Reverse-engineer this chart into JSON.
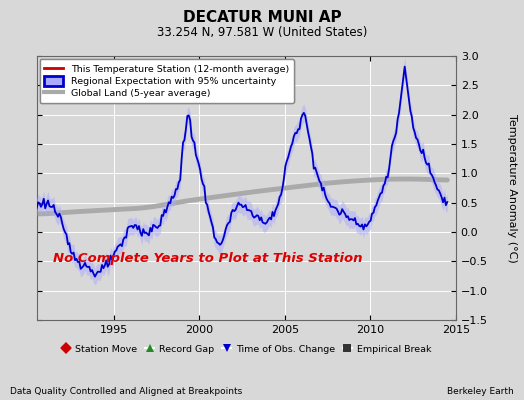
{
  "title": "DECATUR MUNI AP",
  "subtitle": "33.254 N, 97.581 W (United States)",
  "ylabel": "Temperature Anomaly (°C)",
  "xlabel_left": "Data Quality Controlled and Aligned at Breakpoints",
  "xlabel_right": "Berkeley Earth",
  "annotation": "No Complete Years to Plot at This Station",
  "annotation_color": "#dd0000",
  "xlim": [
    1990.5,
    2015.0
  ],
  "ylim": [
    -1.5,
    3.0
  ],
  "yticks": [
    -1.5,
    -1.0,
    -0.5,
    0.0,
    0.5,
    1.0,
    1.5,
    2.0,
    2.5,
    3.0
  ],
  "xticks": [
    1995,
    2000,
    2005,
    2010,
    2015
  ],
  "background_color": "#d8d8d8",
  "plot_bg_color": "#d8d8d8",
  "grid_color": "#ffffff",
  "regional_color": "#0000cc",
  "regional_fill": "#aaaaff",
  "global_color": "#aaaaaa",
  "station_color": "#cc0000",
  "legend_items": [
    {
      "label": "This Temperature Station (12-month average)",
      "color": "#cc0000",
      "lw": 2
    },
    {
      "label": "Regional Expectation with 95% uncertainty",
      "color": "#0000cc",
      "lw": 2
    },
    {
      "label": "Global Land (5-year average)",
      "color": "#aaaaaa",
      "lw": 3
    }
  ],
  "bottom_legend": [
    {
      "label": "Station Move",
      "color": "#cc0000",
      "marker": "D"
    },
    {
      "label": "Record Gap",
      "color": "#228B22",
      "marker": "^"
    },
    {
      "label": "Time of Obs. Change",
      "color": "#0000cc",
      "marker": "v"
    },
    {
      "label": "Empirical Break",
      "color": "#333333",
      "marker": "s"
    }
  ]
}
